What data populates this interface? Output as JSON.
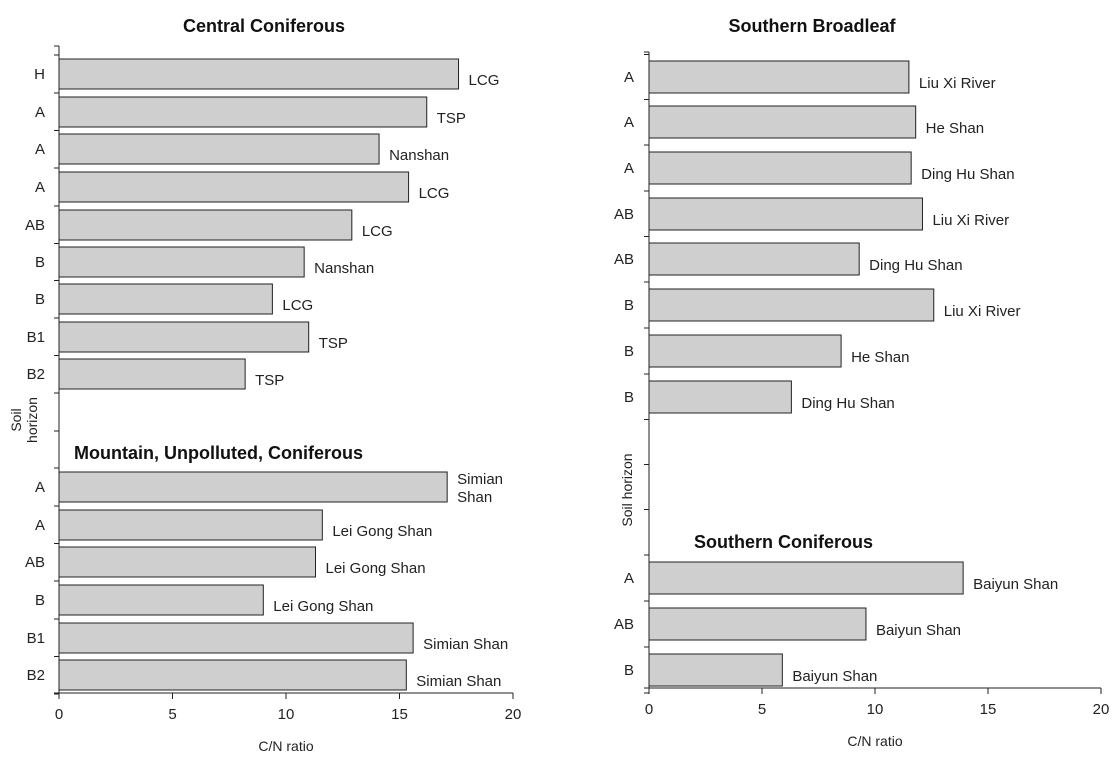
{
  "chart_data": [
    {
      "type": "bar",
      "orientation": "horizontal",
      "xlabel": "C/N ratio",
      "ylabel_lines": [
        "Soil",
        "horizon"
      ],
      "xlim": [
        0,
        20
      ],
      "xticks": [
        0,
        5,
        10,
        15,
        20
      ],
      "groups": [
        {
          "title": "Central Coniferous",
          "bars": [
            {
              "category": "H",
              "value": 17.6,
              "label": "LCG"
            },
            {
              "category": "A",
              "value": 16.2,
              "label": "TSP"
            },
            {
              "category": "A",
              "value": 14.1,
              "label": "Nanshan"
            },
            {
              "category": "A",
              "value": 15.4,
              "label": "LCG"
            },
            {
              "category": "AB",
              "value": 12.9,
              "label": "LCG"
            },
            {
              "category": "B",
              "value": 10.8,
              "label": "Nanshan"
            },
            {
              "category": "B",
              "value": 9.4,
              "label": "LCG"
            },
            {
              "category": "B1",
              "value": 11.0,
              "label": "TSP"
            },
            {
              "category": "B2",
              "value": 8.2,
              "label": "TSP"
            }
          ]
        },
        {
          "title": "Mountain, Unpolluted, Coniferous",
          "bars": [
            {
              "category": "A",
              "value": 17.1,
              "label": "Simian Shan",
              "label_lines": [
                "Simian",
                "Shan"
              ]
            },
            {
              "category": "A",
              "value": 11.6,
              "label": "Lei Gong Shan"
            },
            {
              "category": "AB",
              "value": 11.3,
              "label": "Lei Gong Shan"
            },
            {
              "category": "B",
              "value": 9.0,
              "label": "Lei Gong Shan"
            },
            {
              "category": "B1",
              "value": 15.6,
              "label": "Simian Shan"
            },
            {
              "category": "B2",
              "value": 15.3,
              "label": "Simian Shan"
            }
          ]
        }
      ]
    },
    {
      "type": "bar",
      "orientation": "horizontal",
      "xlabel": "C/N ratio",
      "ylabel": "Soil horizon",
      "xlim": [
        0,
        20
      ],
      "xticks": [
        0,
        5,
        10,
        15,
        20
      ],
      "groups": [
        {
          "title": "Southern Broadleaf",
          "bars": [
            {
              "category": "A",
              "value": 11.5,
              "label": "Liu Xi River"
            },
            {
              "category": "A",
              "value": 11.8,
              "label": "He Shan"
            },
            {
              "category": "A",
              "value": 11.6,
              "label": "Ding Hu Shan"
            },
            {
              "category": "AB",
              "value": 12.1,
              "label": "Liu Xi River"
            },
            {
              "category": "AB",
              "value": 9.3,
              "label": "Ding Hu Shan"
            },
            {
              "category": "B",
              "value": 12.6,
              "label": "Liu Xi River"
            },
            {
              "category": "B",
              "value": 8.5,
              "label": "He Shan"
            },
            {
              "category": "B",
              "value": 6.3,
              "label": "Ding Hu Shan"
            }
          ]
        },
        {
          "title": "Southern Coniferous",
          "bars": [
            {
              "category": "A",
              "value": 13.9,
              "label": "Baiyun Shan"
            },
            {
              "category": "AB",
              "value": 9.6,
              "label": "Baiyun Shan"
            },
            {
              "category": "B",
              "value": 5.9,
              "label": "Baiyun Shan"
            }
          ]
        }
      ]
    }
  ]
}
